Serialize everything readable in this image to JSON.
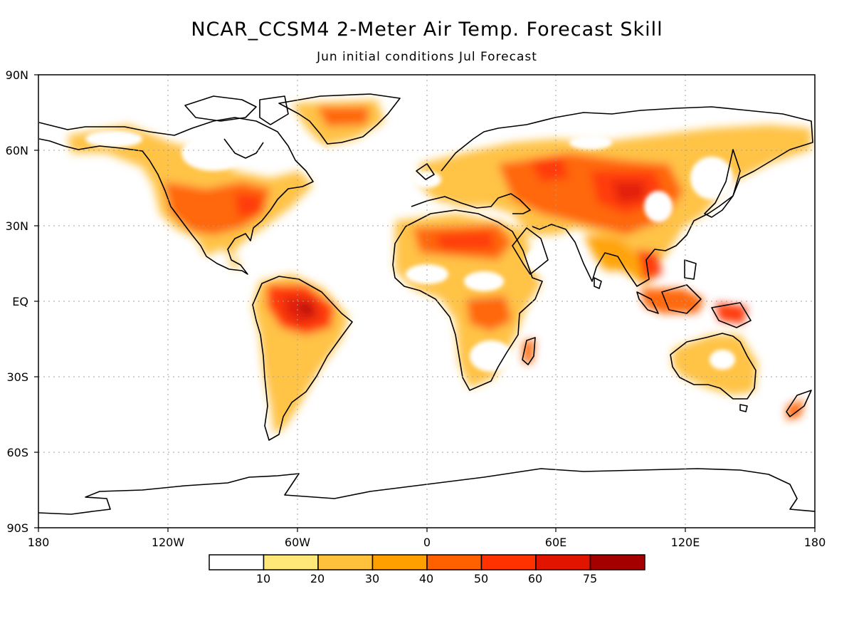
{
  "title": "NCAR_CCSM4 2-Meter Air Temp. Forecast Skill",
  "subtitle": "Jun initial conditions  Jul Forecast",
  "lat_labels": [
    "90N",
    "60N",
    "30N",
    "EQ",
    "30S",
    "60S",
    "90S"
  ],
  "lon_labels": [
    "180",
    "120W",
    "60W",
    "0",
    "60E",
    "120E",
    "180"
  ],
  "colorbar": {
    "ticks": [
      "10",
      "20",
      "30",
      "40",
      "50",
      "60",
      "75"
    ],
    "colors": [
      "#ffffff",
      "#ffe878",
      "#ffc03c",
      "#ffa000",
      "#ff6000",
      "#ff3200",
      "#e11400",
      "#a50000"
    ]
  },
  "map_colors": {
    "land": "#ffffff",
    "coastline": "#000000",
    "grid": "#a0a0a0"
  }
}
